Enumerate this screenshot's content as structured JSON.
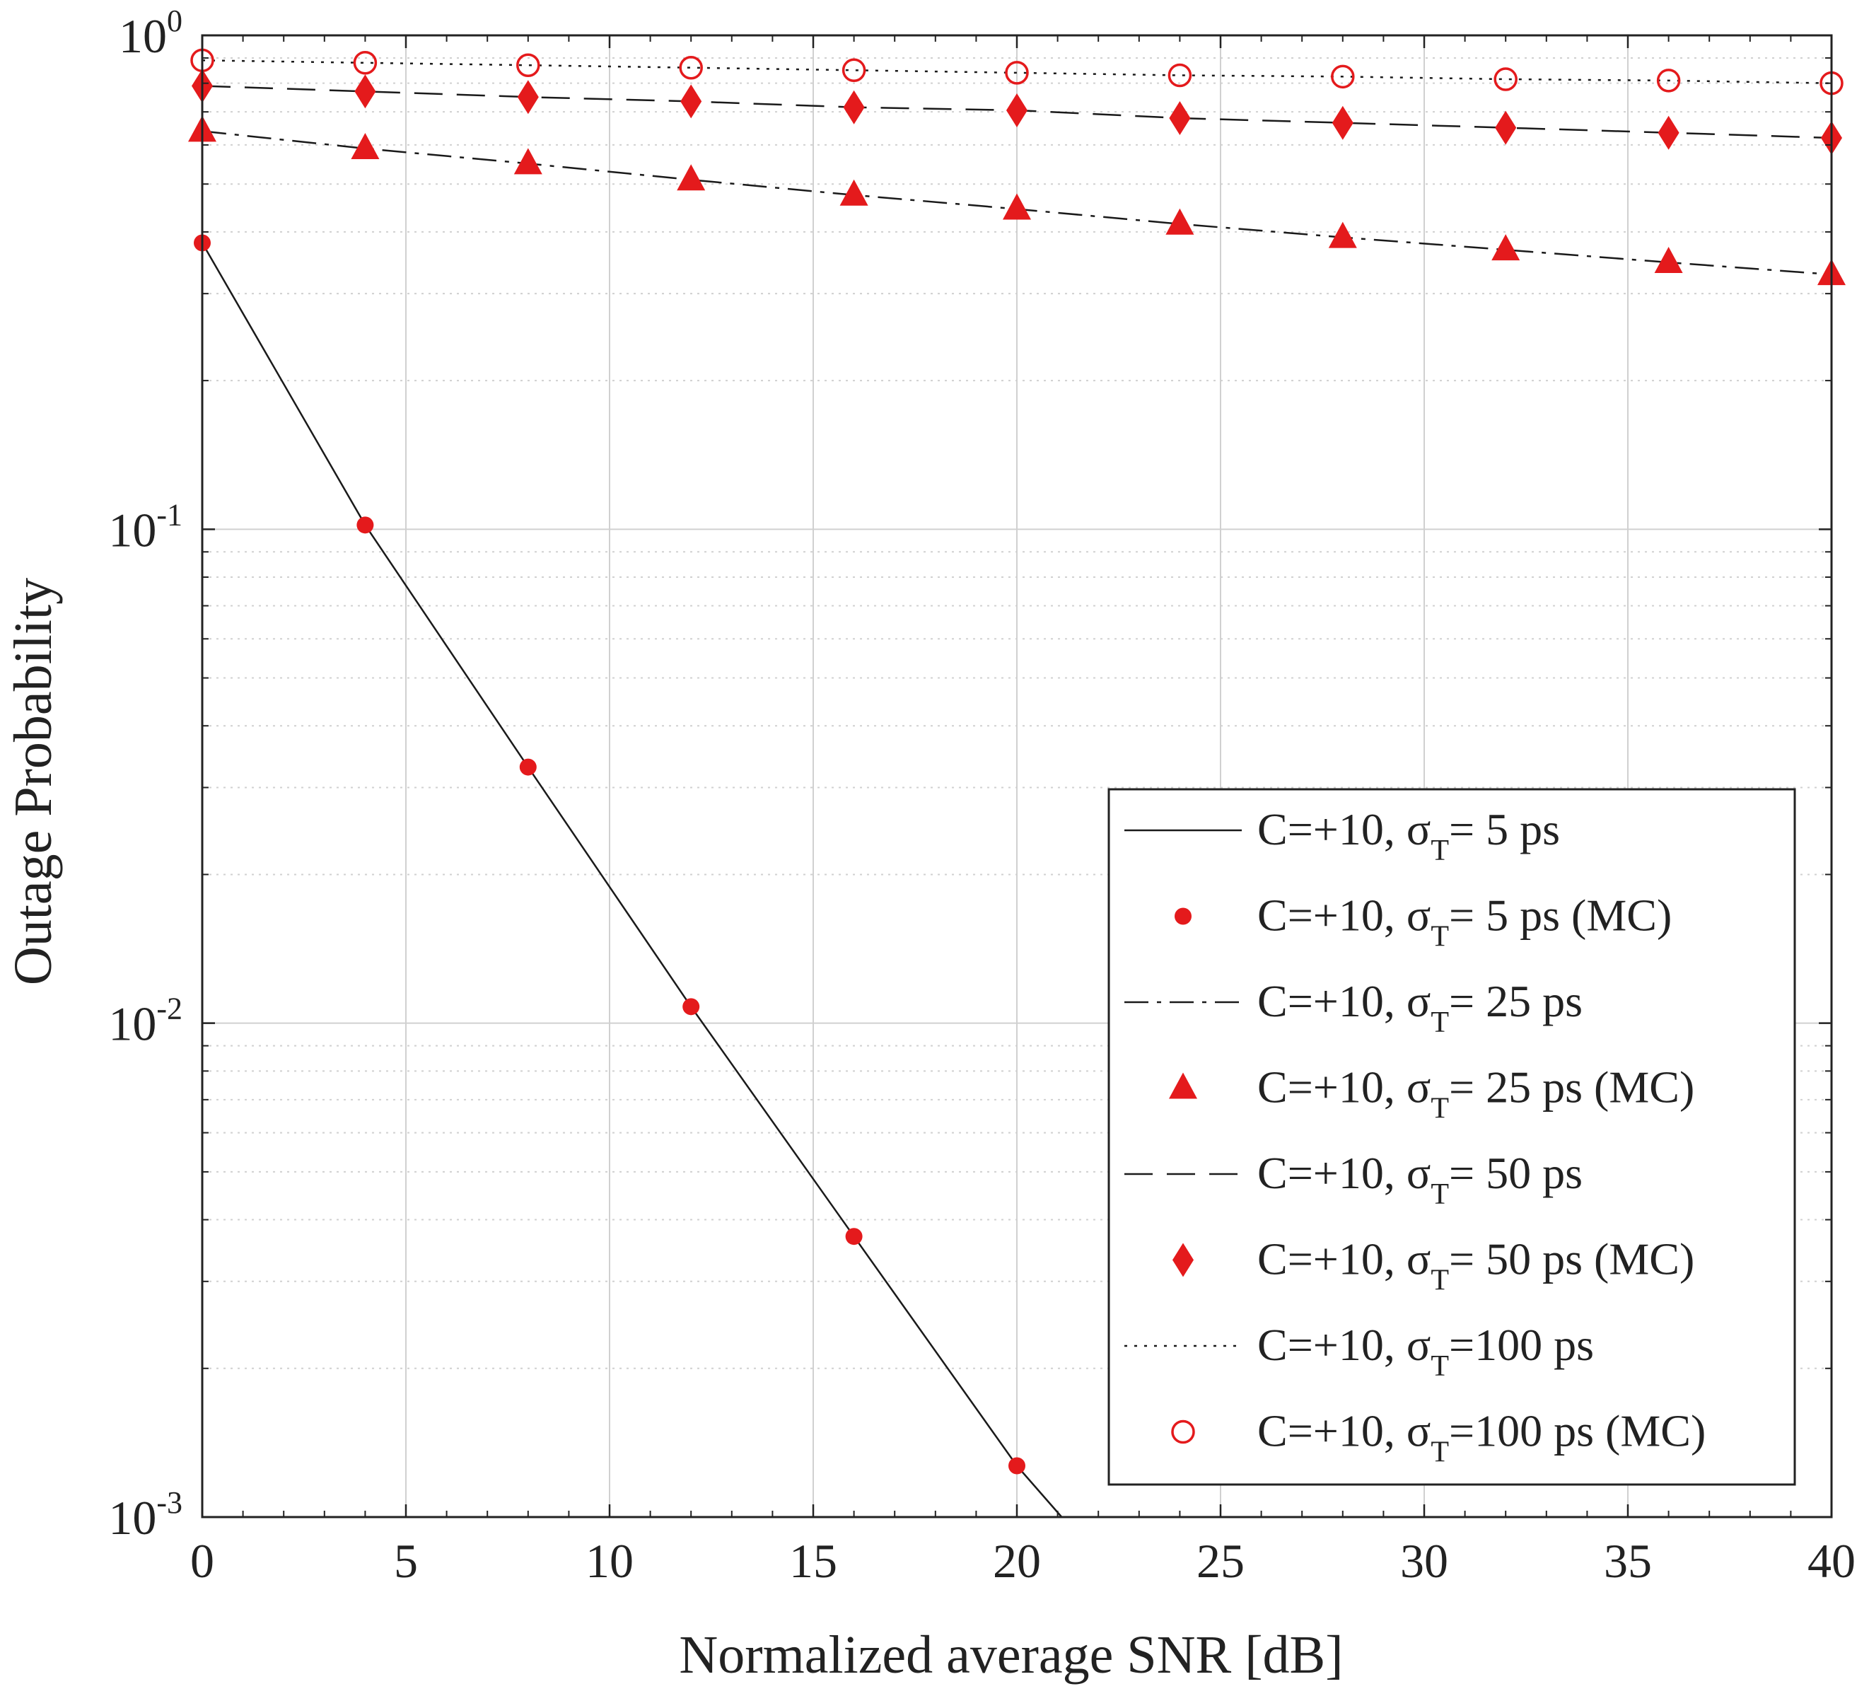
{
  "chart_data": {
    "type": "line",
    "title": "",
    "xlabel": "Normalized average SNR [dB]",
    "ylabel": "Outage Probability",
    "xscale": "linear",
    "yscale": "log",
    "xlim": [
      0,
      40
    ],
    "ylim": [
      0.001,
      1
    ],
    "grid": true,
    "x_ticks": [
      0,
      5,
      10,
      15,
      20,
      25,
      30,
      35,
      40
    ],
    "x_tick_labels": [
      "0",
      "5",
      "10",
      "15",
      "20",
      "25",
      "30",
      "35",
      "40"
    ],
    "y_ticks": [
      {
        "value": 1,
        "base": "10",
        "exp": "0"
      },
      {
        "value": 0.1,
        "base": "10",
        "exp": "-1"
      },
      {
        "value": 0.01,
        "base": "10",
        "exp": "-2"
      },
      {
        "value": 0.001,
        "base": "10",
        "exp": "-3"
      }
    ],
    "legend_location": "lower-right",
    "series": [
      {
        "label": "C=+10, σ",
        "sub": "T",
        "suffix": "=  5 ps",
        "kind": "line",
        "dash": "solid",
        "x": [
          0,
          4,
          8,
          12,
          16,
          20,
          21.1
        ],
        "y": [
          0.38,
          0.102,
          0.033,
          0.0108,
          0.0037,
          0.00127,
          0.001
        ]
      },
      {
        "label": "C=+10, σ",
        "sub": "T",
        "suffix": "=  5 ps (MC)",
        "kind": "markers",
        "marker": "dot",
        "x": [
          0,
          4,
          8,
          12,
          16,
          20
        ],
        "y": [
          0.38,
          0.102,
          0.033,
          0.0108,
          0.0037,
          0.00127
        ]
      },
      {
        "label": "C=+10, σ",
        "sub": "T",
        "suffix": "= 25 ps",
        "kind": "line",
        "dash": "dashdot",
        "x": [
          0,
          4,
          8,
          12,
          16,
          20,
          24,
          28,
          32,
          36,
          40
        ],
        "y": [
          0.64,
          0.59,
          0.55,
          0.51,
          0.475,
          0.445,
          0.415,
          0.39,
          0.368,
          0.347,
          0.328
        ]
      },
      {
        "label": "C=+10, σ",
        "sub": "T",
        "suffix": "= 25 ps (MC)",
        "kind": "markers",
        "marker": "triangle",
        "x": [
          0,
          4,
          8,
          12,
          16,
          20,
          24,
          28,
          32,
          36,
          40
        ],
        "y": [
          0.64,
          0.59,
          0.55,
          0.51,
          0.475,
          0.445,
          0.415,
          0.39,
          0.368,
          0.347,
          0.328
        ]
      },
      {
        "label": "C=+10, σ",
        "sub": "T",
        "suffix": "= 50 ps",
        "kind": "line",
        "dash": "dashed",
        "x": [
          0,
          4,
          8,
          12,
          16,
          20,
          24,
          28,
          32,
          36,
          40
        ],
        "y": [
          0.79,
          0.77,
          0.75,
          0.735,
          0.715,
          0.705,
          0.68,
          0.665,
          0.65,
          0.635,
          0.62
        ]
      },
      {
        "label": "C=+10, σ",
        "sub": "T",
        "suffix": "= 50 ps (MC)",
        "kind": "markers",
        "marker": "diamond",
        "x": [
          0,
          4,
          8,
          12,
          16,
          20,
          24,
          28,
          32,
          36,
          40
        ],
        "y": [
          0.79,
          0.77,
          0.75,
          0.735,
          0.715,
          0.705,
          0.68,
          0.665,
          0.65,
          0.635,
          0.62
        ]
      },
      {
        "label": "C=+10, σ",
        "sub": "T",
        "suffix": "=100 ps",
        "kind": "line",
        "dash": "dotted",
        "x": [
          0,
          4,
          8,
          12,
          16,
          20,
          24,
          28,
          32,
          36,
          40
        ],
        "y": [
          0.89,
          0.88,
          0.87,
          0.86,
          0.85,
          0.84,
          0.83,
          0.825,
          0.815,
          0.81,
          0.8
        ]
      },
      {
        "label": "C=+10, σ",
        "sub": "T",
        "suffix": "=100 ps (MC)",
        "kind": "markers",
        "marker": "circle",
        "x": [
          0,
          4,
          8,
          12,
          16,
          20,
          24,
          28,
          32,
          36,
          40
        ],
        "y": [
          0.89,
          0.88,
          0.87,
          0.86,
          0.85,
          0.84,
          0.83,
          0.825,
          0.815,
          0.81,
          0.8
        ]
      }
    ],
    "colors": {
      "line": "#1a1a1a",
      "marker": "#e41a1c",
      "grid": "#d0d0d0",
      "axis": "#222222"
    }
  }
}
